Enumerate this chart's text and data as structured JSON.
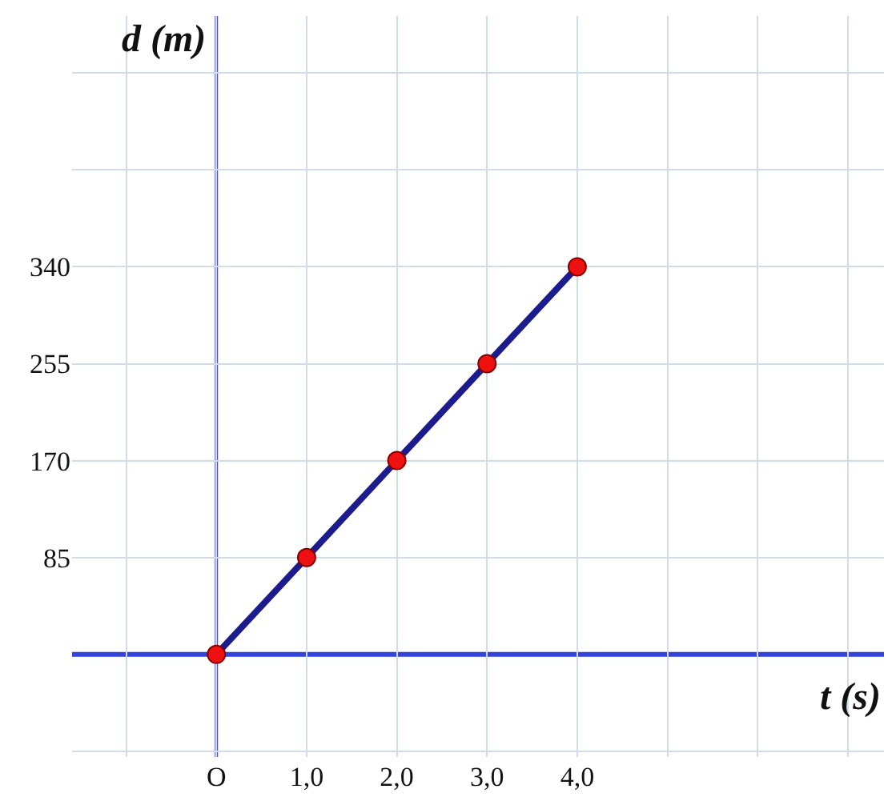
{
  "chart_data": {
    "type": "line",
    "xlabel": "t (s)",
    "ylabel": "d (m)",
    "x": [
      0,
      1,
      2,
      3,
      4
    ],
    "series": [
      {
        "color": "#1c1c8c",
        "values": [
          0,
          85,
          170,
          255,
          340
        ]
      }
    ],
    "ref_lines": [
      {
        "axis": "x",
        "value": 0,
        "color": "#4a4ae8"
      },
      {
        "axis": "y",
        "value": 0,
        "color": "#3344dd"
      }
    ],
    "marker": "circle",
    "line_style": "solid",
    "grid": true,
    "xlim": [
      -1.6,
      7.4
    ],
    "ylim": [
      -90,
      560
    ],
    "xticks": [
      {
        "value": -1,
        "label": null
      },
      {
        "value": 0,
        "label": "O"
      },
      {
        "value": 1,
        "label": "1,0"
      },
      {
        "value": 2,
        "label": "2,0"
      },
      {
        "value": 3,
        "label": "3,0"
      },
      {
        "value": 4,
        "label": "4,0"
      },
      {
        "value": 5,
        "label": null
      },
      {
        "value": 6,
        "label": null
      },
      {
        "value": 7,
        "label": null
      }
    ],
    "yticks": [
      {
        "value": -85,
        "label": null
      },
      {
        "value": 85,
        "label": "85"
      },
      {
        "value": 170,
        "label": "170"
      },
      {
        "value": 255,
        "label": "255"
      },
      {
        "value": 340,
        "label": "340"
      },
      {
        "value": 425,
        "label": null
      },
      {
        "value": 510,
        "label": null
      }
    ]
  }
}
